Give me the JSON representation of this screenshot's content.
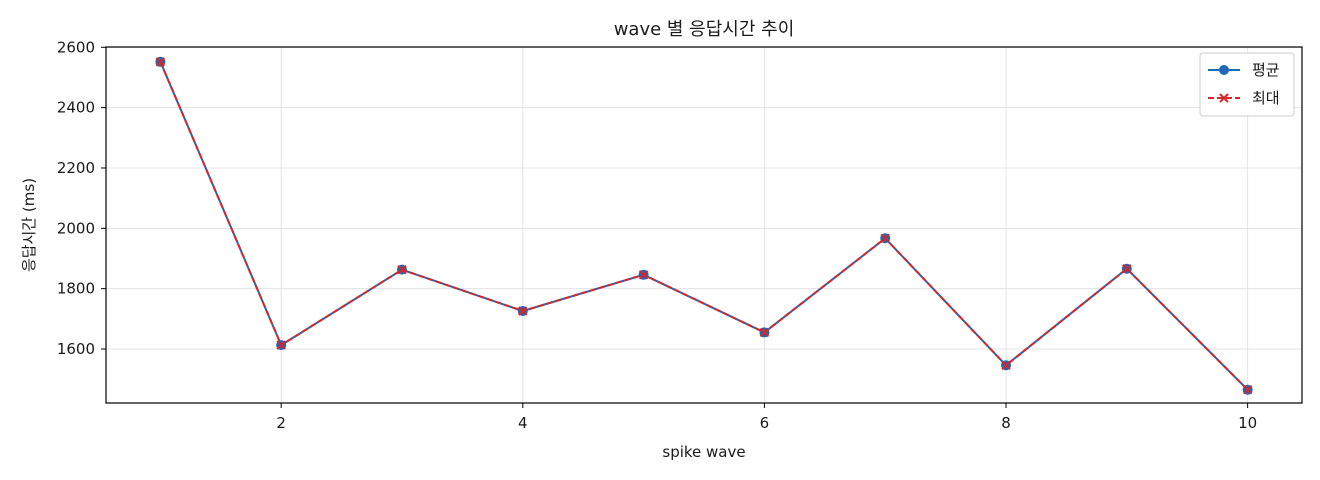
{
  "chart_data": {
    "type": "line",
    "title": "wave 별 응답시간 추이",
    "xlabel": "spike wave",
    "ylabel": "응답시간 (ms)",
    "x": [
      1,
      2,
      3,
      4,
      5,
      6,
      7,
      8,
      9,
      10
    ],
    "xlim": [
      0.55,
      10.45
    ],
    "ylim": [
      1421,
      2601
    ],
    "xticks": [
      2,
      4,
      6,
      8,
      10
    ],
    "yticks": [
      1600,
      1800,
      2000,
      2200,
      2400,
      2600
    ],
    "grid": true,
    "legend_position": "top-right",
    "series": [
      {
        "name": "평균",
        "values": [
          2552,
          1613,
          1863,
          1726,
          1846,
          1655,
          1967,
          1546,
          1866,
          1465
        ],
        "color": "#1f67b8",
        "marker": "circle",
        "line_style": "solid"
      },
      {
        "name": "최대",
        "values": [
          2552,
          1613,
          1863,
          1726,
          1846,
          1655,
          1967,
          1546,
          1866,
          1465
        ],
        "color": "#d62728",
        "marker": "x",
        "line_style": "dashed"
      }
    ]
  }
}
